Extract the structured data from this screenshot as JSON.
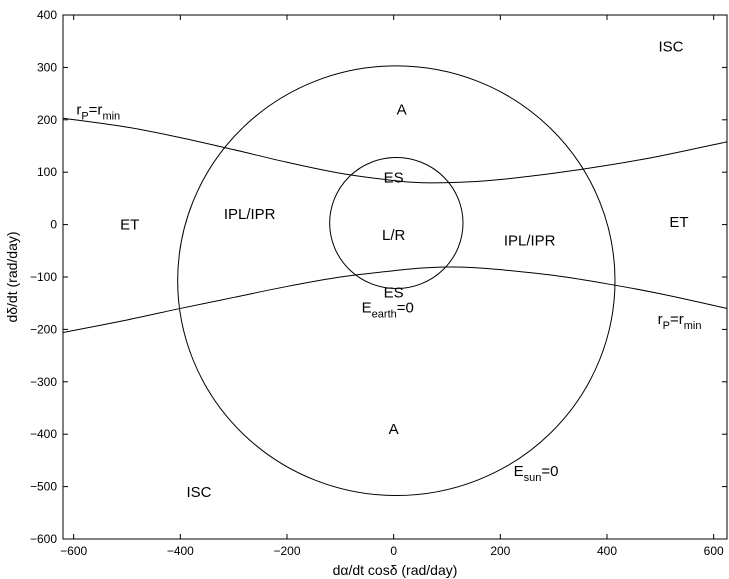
{
  "chart_data": {
    "type": "line",
    "title": "",
    "xlabel": "dα/dt cosδ (rad/day)",
    "ylabel": "dδ/dt (rad/day)",
    "xlim": [
      -620,
      625
    ],
    "ylim": [
      -600,
      400
    ],
    "xticks": [
      -600,
      -400,
      -200,
      0,
      200,
      400,
      600
    ],
    "yticks": [
      -600,
      -500,
      -400,
      -300,
      -200,
      -100,
      0,
      100,
      200,
      300,
      400
    ],
    "grid": false,
    "curves": {
      "sun_circle": {
        "center": [
          5,
          -107
        ],
        "radius": 410
      },
      "earth_circle": {
        "center": [
          5,
          3
        ],
        "radius": 125
      },
      "rp_upper": {
        "x": [
          -620,
          -500,
          -400,
          -300,
          -200,
          -100,
          0,
          50,
          100,
          150,
          200,
          300,
          400,
          500,
          625
        ],
        "y": [
          203,
          186,
          166,
          143,
          119,
          98,
          84,
          80,
          80,
          82,
          86,
          98,
          113,
          131,
          158
        ]
      },
      "rp_lower": {
        "x": [
          -620,
          -500,
          -400,
          -300,
          -200,
          -100,
          0,
          50,
          100,
          150,
          200,
          300,
          400,
          500,
          625
        ],
        "y": [
          -206,
          -182,
          -160,
          -139,
          -118,
          -100,
          -88,
          -83,
          -81,
          -82,
          -86,
          -97,
          -113,
          -132,
          -160
        ]
      }
    },
    "annotations": [
      {
        "text": "ISC",
        "x": 520,
        "y": 340
      },
      {
        "text": "A",
        "x": 15,
        "y": 220
      },
      {
        "text": "ES",
        "x": 0,
        "y": 90
      },
      {
        "text": "L/R",
        "x": 0,
        "y": -20
      },
      {
        "text": "ES",
        "x": 0,
        "y": -130
      },
      {
        "text": "ET",
        "x": -495,
        "y": 0
      },
      {
        "text": "IPL/IPR",
        "x": -270,
        "y": 20
      },
      {
        "text": "IPL/IPR",
        "x": 255,
        "y": -30
      },
      {
        "text": "ET",
        "x": 535,
        "y": 5
      },
      {
        "text": "A",
        "x": 0,
        "y": -390
      },
      {
        "text": "ISC",
        "x": -365,
        "y": -510
      }
    ],
    "rich_annotations": [
      {
        "main": "r",
        "sub": "P",
        "mid": "=r",
        "sub2": "min",
        "x": -595,
        "y": 210
      },
      {
        "main": "r",
        "sub": "P",
        "mid": "=r",
        "sub2": "min",
        "x": 495,
        "y": -190
      },
      {
        "main": "E",
        "sub": "earth",
        "mid": "=0",
        "sub2": "",
        "x": -60,
        "y": -168
      },
      {
        "main": "E",
        "sub": "sun",
        "mid": "=0",
        "sub2": "",
        "x": 225,
        "y": -480
      }
    ]
  }
}
